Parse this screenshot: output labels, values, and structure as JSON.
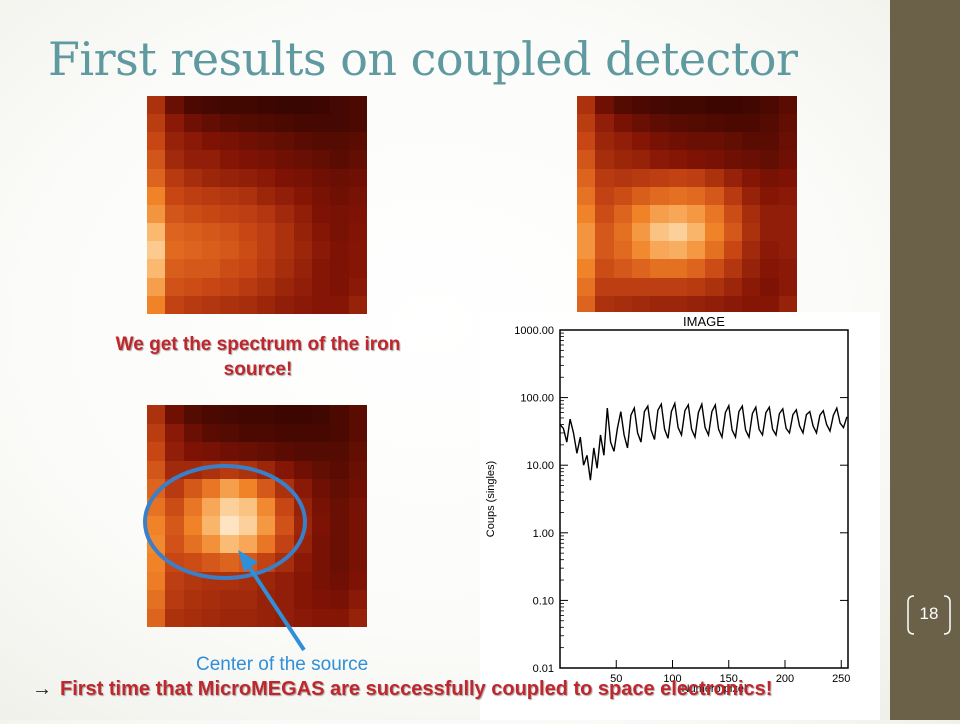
{
  "slide": {
    "title": "First results on coupled detector",
    "note_top": "We get the spectrum of the iron source!",
    "caption": "Center of the source",
    "bottom_arrow": "→",
    "bottom_text": "First time that MicroMEGAS are successfully coupled to space electronics!",
    "page_number": "18"
  },
  "colors": {
    "title": "#5e9aa0",
    "highlight_text": "#c0272d",
    "caption": "#2f8fd8",
    "sidebar": "#6b6149",
    "ellipse": "#3a7fc8"
  },
  "heatmaps": [
    {
      "name": "top-left",
      "values": [
        [
          0.4,
          0.18,
          0.1,
          0.08,
          0.07,
          0.07,
          0.06,
          0.05,
          0.05,
          0.06,
          0.08,
          0.1
        ],
        [
          0.45,
          0.28,
          0.2,
          0.16,
          0.14,
          0.12,
          0.11,
          0.1,
          0.09,
          0.08,
          0.08,
          0.1
        ],
        [
          0.5,
          0.32,
          0.28,
          0.24,
          0.22,
          0.2,
          0.18,
          0.16,
          0.14,
          0.12,
          0.12,
          0.14
        ],
        [
          0.55,
          0.36,
          0.3,
          0.3,
          0.26,
          0.24,
          0.22,
          0.2,
          0.18,
          0.16,
          0.14,
          0.16
        ],
        [
          0.6,
          0.44,
          0.38,
          0.34,
          0.32,
          0.3,
          0.28,
          0.24,
          0.22,
          0.2,
          0.18,
          0.2
        ],
        [
          0.7,
          0.5,
          0.46,
          0.44,
          0.42,
          0.4,
          0.34,
          0.3,
          0.26,
          0.22,
          0.2,
          0.22
        ],
        [
          0.75,
          0.55,
          0.52,
          0.5,
          0.48,
          0.46,
          0.42,
          0.36,
          0.3,
          0.24,
          0.22,
          0.24
        ],
        [
          0.85,
          0.6,
          0.58,
          0.56,
          0.54,
          0.5,
          0.46,
          0.4,
          0.32,
          0.26,
          0.22,
          0.25
        ],
        [
          0.9,
          0.62,
          0.6,
          0.58,
          0.56,
          0.52,
          0.46,
          0.4,
          0.34,
          0.28,
          0.24,
          0.26
        ],
        [
          0.85,
          0.58,
          0.56,
          0.56,
          0.52,
          0.5,
          0.44,
          0.38,
          0.32,
          0.26,
          0.24,
          0.26
        ],
        [
          0.78,
          0.54,
          0.52,
          0.5,
          0.48,
          0.44,
          0.4,
          0.34,
          0.3,
          0.26,
          0.24,
          0.28
        ],
        [
          0.7,
          0.48,
          0.44,
          0.42,
          0.4,
          0.38,
          0.34,
          0.3,
          0.28,
          0.26,
          0.26,
          0.32
        ]
      ]
    },
    {
      "name": "top-right",
      "values": [
        [
          0.4,
          0.2,
          0.12,
          0.1,
          0.08,
          0.07,
          0.07,
          0.06,
          0.06,
          0.07,
          0.1,
          0.14
        ],
        [
          0.45,
          0.3,
          0.22,
          0.18,
          0.15,
          0.13,
          0.12,
          0.11,
          0.1,
          0.1,
          0.12,
          0.16
        ],
        [
          0.5,
          0.34,
          0.3,
          0.26,
          0.22,
          0.2,
          0.18,
          0.18,
          0.16,
          0.14,
          0.14,
          0.18
        ],
        [
          0.55,
          0.38,
          0.34,
          0.32,
          0.28,
          0.26,
          0.24,
          0.22,
          0.2,
          0.18,
          0.16,
          0.2
        ],
        [
          0.6,
          0.44,
          0.42,
          0.44,
          0.46,
          0.48,
          0.46,
          0.4,
          0.32,
          0.26,
          0.22,
          0.24
        ],
        [
          0.65,
          0.48,
          0.52,
          0.58,
          0.62,
          0.64,
          0.62,
          0.56,
          0.44,
          0.32,
          0.26,
          0.28
        ],
        [
          0.7,
          0.52,
          0.6,
          0.7,
          0.78,
          0.8,
          0.76,
          0.66,
          0.52,
          0.38,
          0.3,
          0.3
        ],
        [
          0.75,
          0.56,
          0.64,
          0.76,
          0.88,
          0.92,
          0.84,
          0.7,
          0.56,
          0.4,
          0.3,
          0.3
        ],
        [
          0.75,
          0.56,
          0.62,
          0.72,
          0.8,
          0.82,
          0.76,
          0.64,
          0.5,
          0.36,
          0.28,
          0.3
        ],
        [
          0.7,
          0.52,
          0.56,
          0.6,
          0.64,
          0.64,
          0.6,
          0.52,
          0.42,
          0.32,
          0.26,
          0.28
        ],
        [
          0.65,
          0.46,
          0.46,
          0.46,
          0.46,
          0.46,
          0.44,
          0.4,
          0.34,
          0.28,
          0.24,
          0.28
        ],
        [
          0.6,
          0.4,
          0.38,
          0.36,
          0.34,
          0.34,
          0.32,
          0.3,
          0.28,
          0.26,
          0.26,
          0.32
        ]
      ]
    },
    {
      "name": "bottom-left",
      "values": [
        [
          0.4,
          0.2,
          0.12,
          0.1,
          0.08,
          0.07,
          0.07,
          0.06,
          0.06,
          0.07,
          0.1,
          0.14
        ],
        [
          0.45,
          0.28,
          0.18,
          0.14,
          0.12,
          0.1,
          0.1,
          0.09,
          0.09,
          0.09,
          0.1,
          0.14
        ],
        [
          0.5,
          0.3,
          0.24,
          0.22,
          0.2,
          0.18,
          0.16,
          0.14,
          0.12,
          0.12,
          0.12,
          0.16
        ],
        [
          0.55,
          0.36,
          0.36,
          0.4,
          0.44,
          0.4,
          0.34,
          0.26,
          0.2,
          0.16,
          0.14,
          0.18
        ],
        [
          0.6,
          0.44,
          0.56,
          0.66,
          0.78,
          0.7,
          0.56,
          0.4,
          0.28,
          0.2,
          0.16,
          0.2
        ],
        [
          0.65,
          0.52,
          0.66,
          0.8,
          0.92,
          0.88,
          0.72,
          0.5,
          0.32,
          0.22,
          0.18,
          0.22
        ],
        [
          0.7,
          0.56,
          0.7,
          0.84,
          0.98,
          0.92,
          0.76,
          0.54,
          0.34,
          0.24,
          0.18,
          0.22
        ],
        [
          0.72,
          0.54,
          0.64,
          0.74,
          0.86,
          0.8,
          0.66,
          0.48,
          0.32,
          0.22,
          0.18,
          0.22
        ],
        [
          0.7,
          0.5,
          0.52,
          0.56,
          0.6,
          0.56,
          0.48,
          0.38,
          0.28,
          0.22,
          0.18,
          0.22
        ],
        [
          0.68,
          0.46,
          0.42,
          0.4,
          0.4,
          0.38,
          0.34,
          0.3,
          0.26,
          0.22,
          0.2,
          0.24
        ],
        [
          0.64,
          0.44,
          0.4,
          0.38,
          0.36,
          0.36,
          0.32,
          0.3,
          0.26,
          0.24,
          0.22,
          0.28
        ],
        [
          0.6,
          0.4,
          0.38,
          0.36,
          0.34,
          0.34,
          0.32,
          0.3,
          0.28,
          0.26,
          0.26,
          0.32
        ]
      ]
    }
  ],
  "chart_data": {
    "type": "line",
    "title": "IMAGE",
    "xlabel": "Numero pixel",
    "ylabel": "Coups (singles)",
    "yscale": "log",
    "xlim": [
      0,
      256
    ],
    "ylim": [
      0.01,
      1000
    ],
    "x_ticks": [
      "50",
      "100",
      "150",
      "200",
      "250"
    ],
    "y_ticks": [
      "1000.00",
      "100.00",
      "10.00",
      "1.00",
      "0.10",
      "0.01"
    ],
    "grid": false,
    "series": [
      {
        "x": [
          0,
          3,
          6,
          9,
          12,
          15,
          18,
          21,
          24,
          27,
          30,
          33,
          36,
          39,
          42,
          45,
          48,
          51,
          54,
          57,
          60,
          63,
          66,
          69,
          72,
          75,
          78,
          81,
          84,
          87,
          90,
          93,
          96,
          99,
          102,
          105,
          108,
          111,
          114,
          117,
          120,
          123,
          126,
          129,
          132,
          135,
          138,
          141,
          144,
          147,
          150,
          153,
          156,
          159,
          162,
          165,
          168,
          171,
          174,
          177,
          180,
          183,
          186,
          189,
          192,
          195,
          198,
          201,
          204,
          207,
          210,
          213,
          216,
          219,
          222,
          225,
          228,
          231,
          234,
          237,
          240,
          243,
          246,
          249,
          252,
          255
        ],
        "y": [
          40,
          35,
          22,
          48,
          30,
          15,
          26,
          10,
          14,
          6,
          18,
          9,
          28,
          14,
          70,
          22,
          16,
          35,
          62,
          28,
          18,
          55,
          70,
          30,
          22,
          62,
          75,
          33,
          24,
          65,
          80,
          34,
          25,
          62,
          82,
          36,
          28,
          64,
          78,
          34,
          26,
          60,
          80,
          36,
          28,
          62,
          78,
          34,
          26,
          60,
          76,
          33,
          26,
          62,
          75,
          33,
          26,
          58,
          72,
          34,
          28,
          60,
          72,
          34,
          28,
          58,
          68,
          35,
          30,
          56,
          66,
          38,
          30,
          56,
          62,
          38,
          30,
          55,
          64,
          40,
          32,
          55,
          70,
          42,
          36,
          52
        ]
      }
    ]
  }
}
